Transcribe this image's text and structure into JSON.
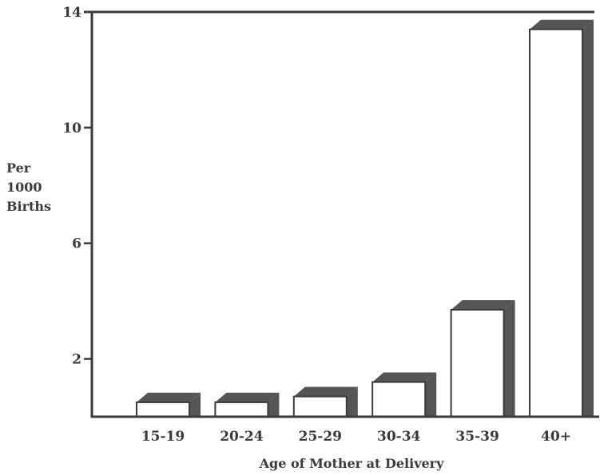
{
  "chart_data": {
    "type": "bar",
    "title": "",
    "xlabel": "Age of Mother at Delivery",
    "ylabel_lines": [
      "Per",
      "1000",
      "Births"
    ],
    "categories": [
      "15-19",
      "20-24",
      "25-29",
      "30-34",
      "35-39",
      "40+"
    ],
    "values": [
      0.5,
      0.5,
      0.7,
      1.2,
      3.7,
      13.4
    ],
    "ylim": [
      0,
      14
    ],
    "yticks": [
      2,
      6,
      10,
      14
    ],
    "grid": false,
    "colors": {
      "axis": "#3a3a3a",
      "bar_face": "#ffffff",
      "bar_shadow": "#555555",
      "text": "#3a3a3a"
    }
  }
}
